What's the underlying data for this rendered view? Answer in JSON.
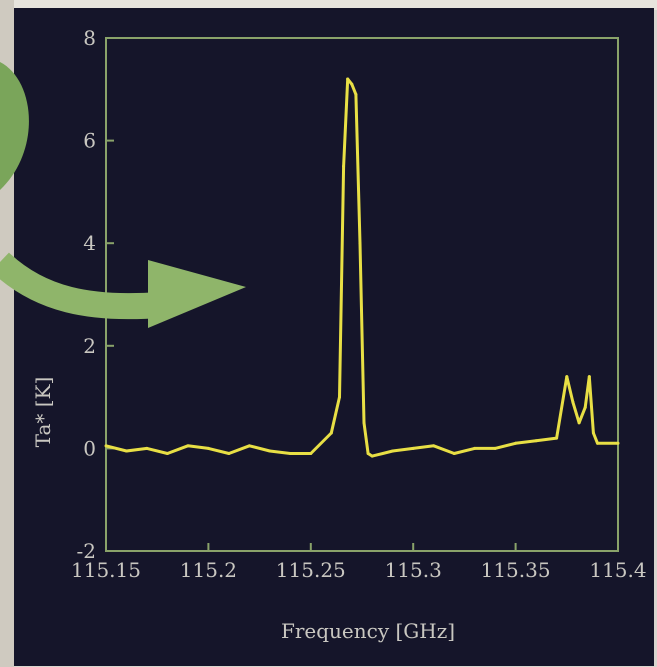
{
  "chart_data": {
    "type": "line",
    "title": "",
    "xlabel": "Frequency [GHz]",
    "ylabel": "Ta* [K]",
    "xlim": [
      115.15,
      115.4
    ],
    "ylim": [
      -2,
      8
    ],
    "grid": false,
    "x_ticks": [
      115.15,
      115.2,
      115.25,
      115.3,
      115.35,
      115.4
    ],
    "x_tick_labels": [
      "115.15",
      "115.2",
      "115.25",
      "115.3",
      "115.35",
      "115.4"
    ],
    "y_ticks": [
      -2,
      0,
      2,
      4,
      6,
      8
    ],
    "y_tick_labels": [
      "-2",
      "0",
      "2",
      "4",
      "6",
      "8"
    ],
    "series": [
      {
        "color": "#e8df45",
        "x": [
          115.15,
          115.16,
          115.17,
          115.18,
          115.19,
          115.2,
          115.21,
          115.22,
          115.23,
          115.24,
          115.25,
          115.26,
          115.264,
          115.266,
          115.268,
          115.27,
          115.272,
          115.274,
          115.276,
          115.278,
          115.28,
          115.29,
          115.3,
          115.31,
          115.32,
          115.33,
          115.34,
          115.35,
          115.36,
          115.37,
          115.375,
          115.378,
          115.381,
          115.384,
          115.386,
          115.388,
          115.39,
          115.4
        ],
        "values": [
          0.05,
          -0.05,
          0.0,
          -0.1,
          0.05,
          0.0,
          -0.1,
          0.05,
          -0.05,
          -0.1,
          -0.1,
          0.3,
          1.0,
          5.5,
          7.2,
          7.1,
          6.9,
          4.0,
          0.5,
          -0.1,
          -0.15,
          -0.05,
          0.0,
          0.05,
          -0.1,
          0.0,
          0.0,
          0.1,
          0.15,
          0.2,
          1.4,
          0.9,
          0.5,
          0.8,
          1.4,
          0.3,
          0.1,
          0.1
        ]
      }
    ],
    "annotations": [
      {
        "type": "arrow",
        "color": "#8fb56a",
        "points_to": "peak"
      }
    ]
  }
}
